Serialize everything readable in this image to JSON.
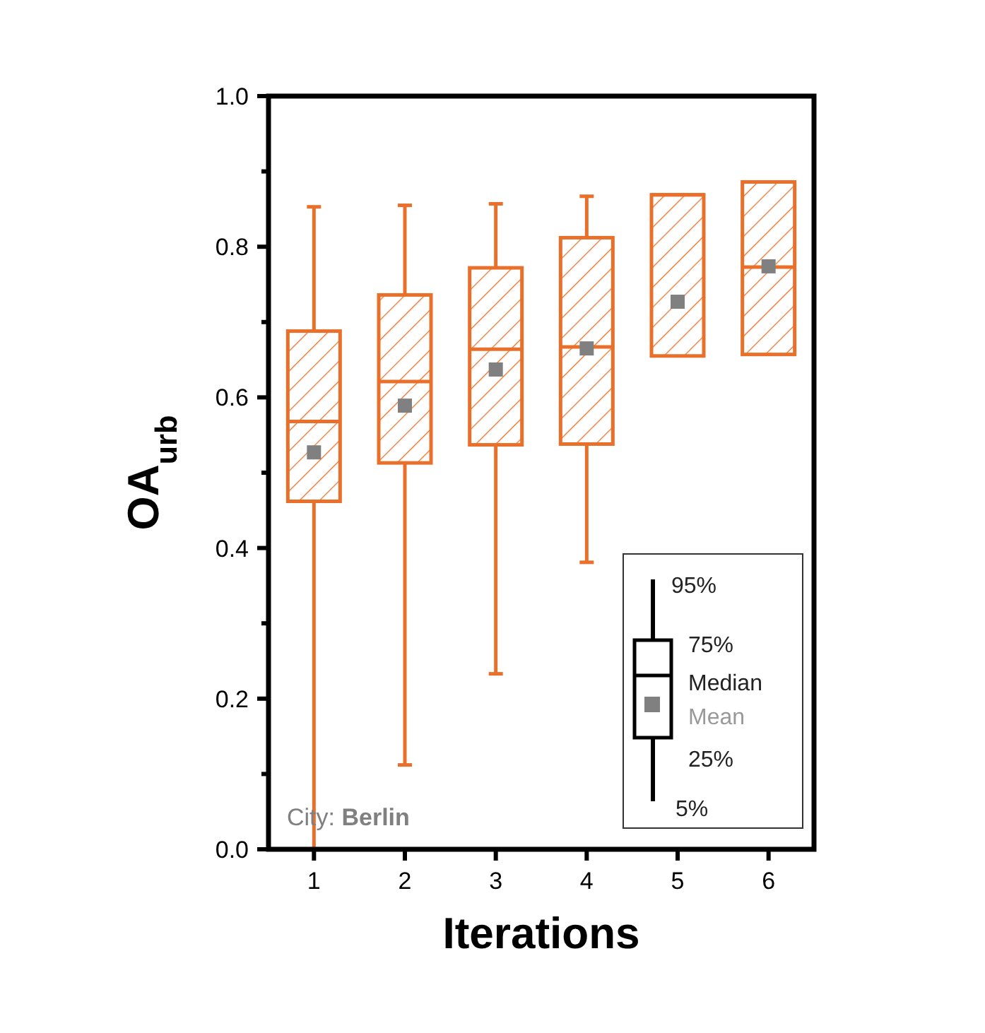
{
  "chart_data": {
    "type": "box",
    "xlabel": "Iterations",
    "ylabel": "OA$_{urb}$",
    "categories": [
      "1",
      "2",
      "3",
      "4",
      "5",
      "6"
    ],
    "ylim": [
      0,
      1
    ],
    "yticks": [
      {
        "value": 0,
        "label": "0.0"
      },
      {
        "value": 0.1,
        "label": null
      },
      {
        "value": 0.2,
        "label": "0.2"
      },
      {
        "value": 0.3,
        "label": null
      },
      {
        "value": 0.4,
        "label": "0.4"
      },
      {
        "value": 0.5,
        "label": null
      },
      {
        "value": 0.6,
        "label": "0.6"
      },
      {
        "value": 0.7,
        "label": null
      },
      {
        "value": 0.8,
        "label": "0.8"
      },
      {
        "value": 0.9,
        "label": null
      },
      {
        "value": 1,
        "label": "1.0"
      }
    ],
    "grid": false,
    "marker": "square",
    "series": [
      {
        "color": "#e8702a",
        "boxes": [
          {
            "low": 0.0,
            "q1": 0.462,
            "median": 0.568,
            "q3": 0.688,
            "high": 0.853,
            "mean": 0.527
          },
          {
            "low": 0.112,
            "q1": 0.513,
            "median": 0.621,
            "q3": 0.736,
            "high": 0.855,
            "mean": 0.589
          },
          {
            "low": 0.233,
            "q1": 0.537,
            "median": 0.664,
            "q3": 0.772,
            "high": 0.857,
            "mean": 0.637
          },
          {
            "low": 0.381,
            "q1": 0.538,
            "median": 0.667,
            "q3": 0.812,
            "high": 0.867,
            "mean": 0.665
          },
          {
            "low": 0.655,
            "q1": 0.655,
            "median": 0.869,
            "q3": 0.869,
            "high": 0.869,
            "mean": 0.727
          },
          {
            "low": 0.657,
            "q1": 0.657,
            "median": 0.773,
            "q3": 0.886,
            "high": 0.886,
            "mean": 0.774
          }
        ]
      }
    ],
    "annotations": [
      "City:",
      "Berlin",
      "95%",
      "75%",
      "Median",
      "Mean",
      "25%",
      "5%"
    ]
  }
}
